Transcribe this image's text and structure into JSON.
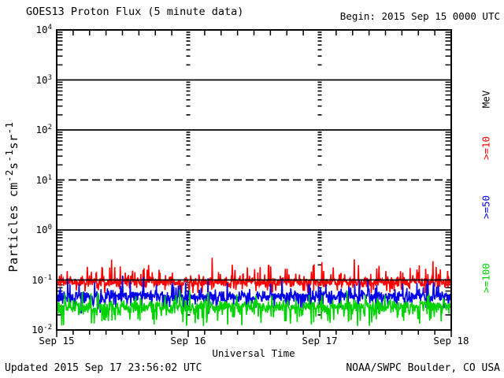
{
  "header": {
    "title": "GOES13 Proton Flux (5 minute data)",
    "begin_label": "Begin: 2015 Sep 15 0000 UTC"
  },
  "footer": {
    "updated": "Updated 2015 Sep 17 23:56:02 UTC",
    "source": "NOAA/SWPC Boulder, CO USA"
  },
  "chart_data": {
    "type": "line",
    "title": "GOES13 Proton Flux (5 minute data)",
    "xlabel": "Universal Time",
    "ylabel_parts": [
      {
        "t": "Particles cm"
      },
      {
        "sup": "-2"
      },
      {
        "t": "s"
      },
      {
        "sup": "-1"
      },
      {
        "t": "sr"
      },
      {
        "sup": "-1"
      }
    ],
    "x_start": "2015 Sep 15 0000 UTC",
    "x_span_days": 3,
    "points_per_day": 288,
    "x_tick_labels": [
      "Sep 15",
      "Sep 16",
      "Sep 17",
      "Sep 18"
    ],
    "minor_x_ticks_per_day": 8,
    "y_scale": "log10",
    "ylim_exponents": [
      -2,
      4
    ],
    "y_tick_exponents": [
      4,
      3,
      2,
      1,
      0,
      -1,
      -2
    ],
    "grid": {
      "solid_line_exponents": [
        3,
        2,
        0,
        -1
      ],
      "dashed_line_exponents": [
        1
      ],
      "day_tick_column_labels": [
        "Sep 16",
        "Sep 17"
      ]
    },
    "legend_title": "MeV",
    "axis_color": "#000000",
    "series": [
      {
        "label": ">=10",
        "name": ">=10 MeV proton flux",
        "color": "#FF0000",
        "log10_mean": -1.05,
        "log10_spread": 0.1,
        "spike_prob": 0.3,
        "spike_amp": 0.52,
        "dip_prob": 0.15,
        "dip_amp": 0.17,
        "clip_log10": [
          -1.26,
          -0.48
        ],
        "seed": 101
      },
      {
        "label": ">=50",
        "name": ">=50 MeV proton flux",
        "color": "#0000E8",
        "log10_mean": -1.33,
        "log10_spread": 0.13,
        "spike_prob": 0.22,
        "spike_amp": 0.42,
        "dip_prob": 0.16,
        "dip_amp": 0.3,
        "clip_log10": [
          -1.68,
          -0.88
        ],
        "seed": 202
      },
      {
        "label": ">=100",
        "name": ">=100 MeV proton flux",
        "color": "#00D400",
        "log10_mean": -1.54,
        "log10_spread": 0.15,
        "spike_prob": 0.2,
        "spike_amp": 0.38,
        "dip_prob": 0.2,
        "dip_amp": 0.34,
        "clip_log10": [
          -1.92,
          -1.13
        ],
        "seed": 303
      }
    ]
  }
}
